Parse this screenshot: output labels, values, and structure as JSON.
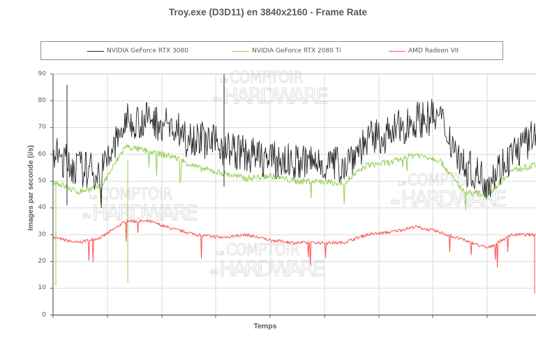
{
  "chart_data": {
    "type": "line",
    "title": "Troy.exe (D3D11) en 3840x2160 - Frame Rate",
    "xlabel": "Temps",
    "ylabel": "Images par seconde (i/s)",
    "ylim": [
      0,
      90
    ],
    "yticks": [
      0,
      10,
      20,
      30,
      40,
      50,
      60,
      70,
      80,
      90
    ],
    "grid": true,
    "legend_position": "top",
    "x_ticks_labeled": false,
    "x": [
      0,
      5,
      10,
      15,
      20,
      25,
      30,
      35,
      40,
      45,
      50,
      55,
      60,
      65,
      70,
      75,
      80,
      85,
      90,
      95,
      100
    ],
    "series": [
      {
        "name": "NVIDIA GeForce RTX 3080",
        "color": "#262626",
        "values": [
          60,
          55,
          53,
          72,
          73,
          70,
          66,
          63,
          60,
          58,
          57,
          57,
          56,
          65,
          68,
          73,
          74,
          56,
          50,
          60,
          67
        ]
      },
      {
        "name": "NVIDIA GeForce RTX 2080 Ti",
        "color": "#92d050",
        "values": [
          50,
          46,
          48,
          63,
          61,
          59,
          55,
          53,
          51,
          52,
          50,
          50,
          49,
          56,
          57,
          60,
          58,
          46,
          45,
          54,
          56
        ]
      },
      {
        "name": "AMD Radeon VII",
        "color": "#ff4d4d",
        "values": [
          29,
          27,
          29,
          35,
          35,
          32,
          30,
          29,
          30,
          28,
          27,
          27,
          27,
          30,
          31,
          33,
          31,
          28,
          25,
          30,
          30
        ]
      }
    ],
    "annotations": [
      "Le Comptoir du Hardware watermark (x3)"
    ]
  },
  "header": {
    "title": "Troy.exe (D3D11) en 3840x2160 - Frame Rate"
  },
  "legend": {
    "items": [
      {
        "label": "NVIDIA GeForce RTX 3080",
        "color": "#262626"
      },
      {
        "label": "NVIDIA GeForce RTX 2080 Ti",
        "color": "#92d050"
      },
      {
        "label": "AMD Radeon VII",
        "color": "#ff4d4d"
      }
    ]
  },
  "axes": {
    "y_label": "Images par seconde (i/s)",
    "x_label": "Temps",
    "y_ticks": [
      "0",
      "10",
      "20",
      "30",
      "40",
      "50",
      "60",
      "70",
      "80",
      "90"
    ]
  },
  "watermark": {
    "line1_small": "Le",
    "line1": "COMPTOIR",
    "line2_small": "du",
    "line2": "HARDWARE"
  }
}
